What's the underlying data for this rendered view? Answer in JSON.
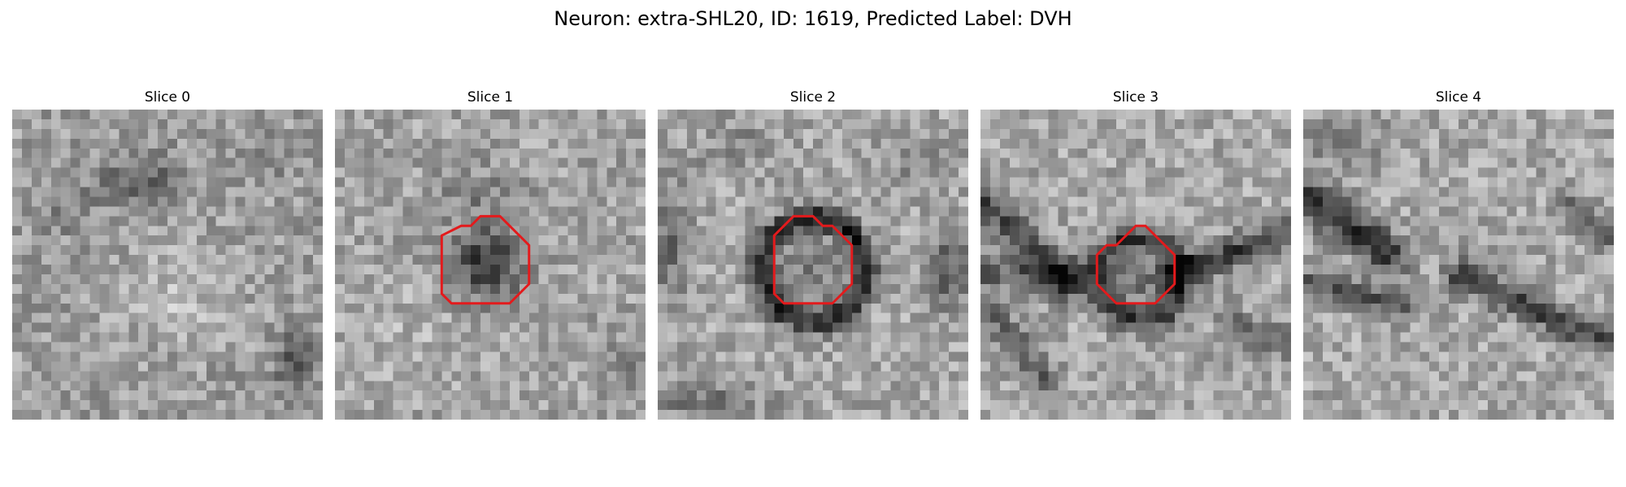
{
  "figure": {
    "title": "Neuron: extra-SHL20, ID: 1619, Predicted Label: DVH"
  },
  "contour_color": "#e31a1c",
  "panels": [
    {
      "label": "Slice 0",
      "has_contour": false
    },
    {
      "label": "Slice 1",
      "has_contour": true
    },
    {
      "label": "Slice 2",
      "has_contour": true
    },
    {
      "label": "Slice 3",
      "has_contour": true
    },
    {
      "label": "Slice 4",
      "has_contour": false
    }
  ]
}
